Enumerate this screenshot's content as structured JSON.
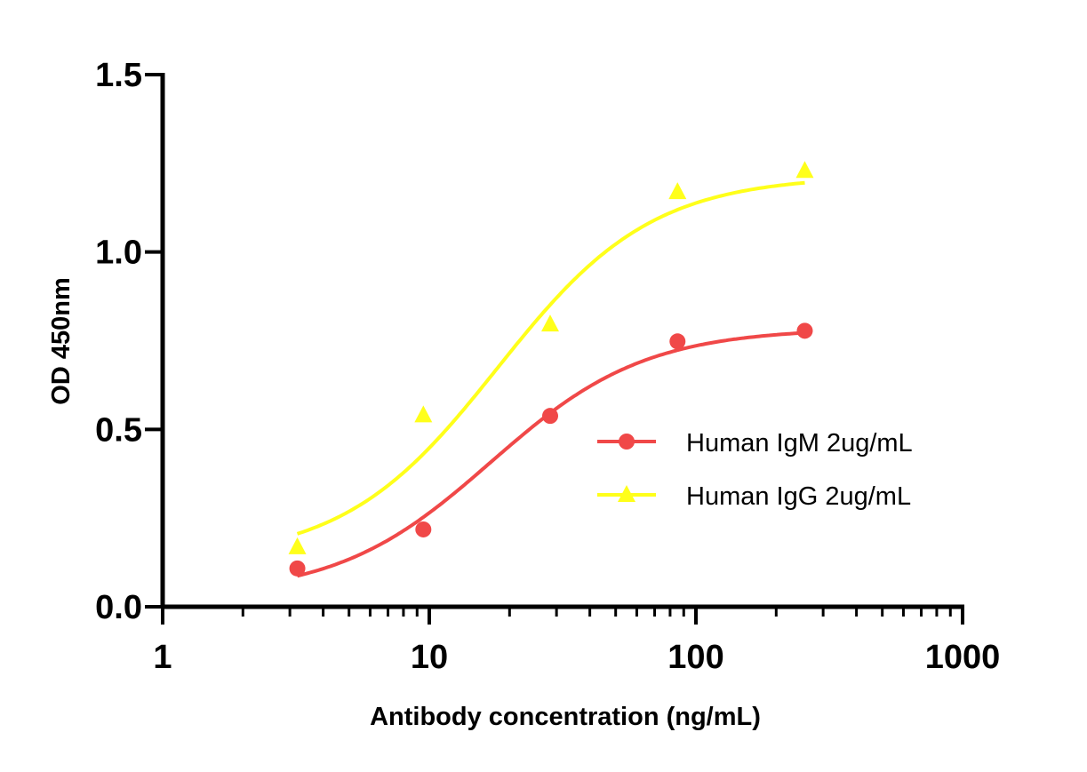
{
  "chart_data": {
    "type": "scatter",
    "title": "",
    "xlabel": "Antibody concentration (ng/mL)",
    "ylabel": "OD 450nm",
    "xscale": "log",
    "xlim": [
      1,
      1000
    ],
    "ylim": [
      0,
      1.5
    ],
    "xticks": [
      1,
      10,
      100,
      1000
    ],
    "xtick_labels": [
      "1",
      "10",
      "100",
      "1000"
    ],
    "yticks": [
      0,
      0.5,
      1.0,
      1.5
    ],
    "ytick_labels": [
      "0.0",
      "0.5",
      "1.0",
      "1.5"
    ],
    "grid": false,
    "legend_position": "right",
    "series": [
      {
        "name": "Human IgM 2ug/mL",
        "color": "#f04848",
        "marker": "circle",
        "x": [
          3.2,
          9.5,
          28.4,
          85.3,
          256
        ],
        "y": [
          0.108,
          0.218,
          0.538,
          0.748,
          0.778
        ],
        "curve": {
          "model": "4PL",
          "bottom": 0.03,
          "top": 0.785,
          "ec50": 17,
          "hill": 1.5
        }
      },
      {
        "name": "Human IgG 2ug/mL",
        "color": "#ffff1a",
        "marker": "triangle",
        "x": [
          3.2,
          9.5,
          28.4,
          85.3,
          256
        ],
        "y": [
          0.168,
          0.54,
          0.796,
          1.169,
          1.229
        ],
        "curve": {
          "model": "4PL",
          "bottom": 0.13,
          "top": 1.215,
          "ec50": 18,
          "hill": 1.5
        }
      }
    ]
  }
}
